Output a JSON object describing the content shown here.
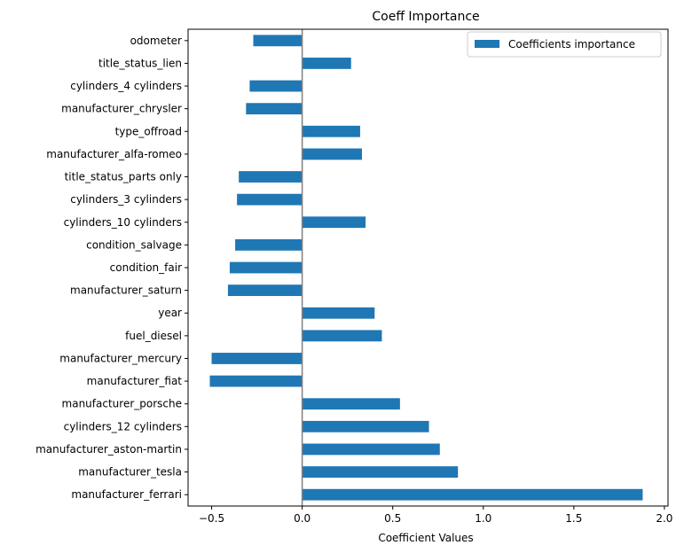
{
  "chart_data": {
    "type": "bar",
    "orientation": "horizontal",
    "title": "Coeff Importance",
    "xlabel": "Coefficient Values",
    "ylabel": "",
    "xlim": [
      -0.63,
      2.02
    ],
    "xticks": [
      -0.5,
      0.0,
      0.5,
      1.0,
      1.5,
      2.0
    ],
    "xtick_labels": [
      "−0.5",
      "0.0",
      "0.5",
      "1.0",
      "1.5",
      "2.0"
    ],
    "zero_line": true,
    "grid": false,
    "legend": {
      "entries": [
        "Coefficients importance"
      ],
      "placement": "top-right"
    },
    "color": "#1f77b4",
    "categories": [
      "odometer",
      "title_status_lien",
      "cylinders_4 cylinders",
      "manufacturer_chrysler",
      "type_offroad",
      "manufacturer_alfa-romeo",
      "title_status_parts only",
      "cylinders_3 cylinders",
      "cylinders_10 cylinders",
      "condition_salvage",
      "condition_fair",
      "manufacturer_saturn",
      "year",
      "fuel_diesel",
      "manufacturer_mercury",
      "manufacturer_fiat",
      "manufacturer_porsche",
      "cylinders_12 cylinders",
      "manufacturer_aston-martin",
      "manufacturer_tesla",
      "manufacturer_ferrari"
    ],
    "series": [
      {
        "name": "Coefficients importance",
        "values": [
          -0.27,
          0.27,
          -0.29,
          -0.31,
          0.32,
          0.33,
          -0.35,
          -0.36,
          0.35,
          -0.37,
          -0.4,
          -0.41,
          0.4,
          0.44,
          -0.5,
          -0.51,
          0.54,
          0.7,
          0.76,
          0.86,
          1.88
        ]
      }
    ]
  }
}
